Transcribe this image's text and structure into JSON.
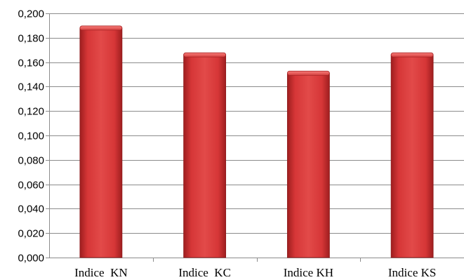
{
  "chart_data": {
    "type": "bar",
    "title": "",
    "xlabel": "",
    "ylabel": "",
    "categories": [
      "Indice  KN",
      "Indice  KC",
      "Indice KH",
      "Indice KS"
    ],
    "values": [
      0.188,
      0.166,
      0.151,
      0.166
    ],
    "ylim": [
      0,
      0.2
    ],
    "y_ticks": [
      "0,000",
      "0,020",
      "0,040",
      "0,060",
      "0,080",
      "0,100",
      "0,120",
      "0,140",
      "0,160",
      "0,180",
      "0,200"
    ],
    "grid": true,
    "legend": "none",
    "colors": {
      "bar": "#d9393a",
      "bar_light": "#f06a68",
      "bar_dark": "#a52324",
      "grid": "#8c8c8c"
    }
  }
}
